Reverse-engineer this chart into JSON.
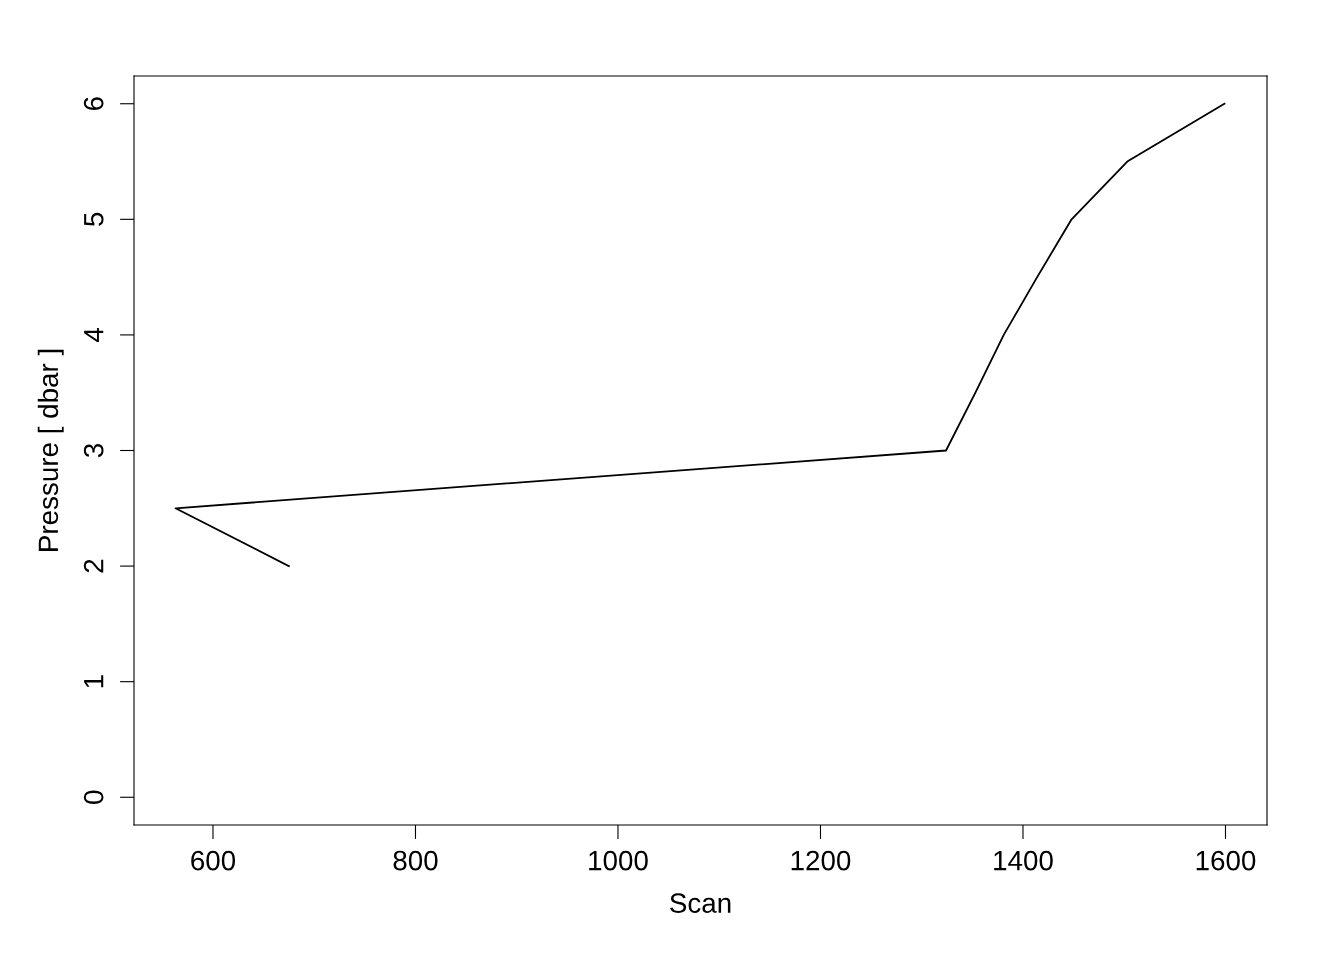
{
  "chart_data": {
    "type": "line",
    "xlabel": "Scan",
    "ylabel": "Pressure [ dbar ]",
    "x": [
      675,
      563,
      1324,
      1353,
      1381,
      1414,
      1448,
      1503,
      1599
    ],
    "series": [
      {
        "color": "#000000",
        "values": [
          2,
          2.5,
          3,
          3.5,
          4,
          4.5,
          5,
          5.5,
          6
        ]
      }
    ],
    "xlim": [
      522,
      1641
    ],
    "ylim": [
      -0.24,
      6.24
    ],
    "xticks": [
      600,
      800,
      1000,
      1200,
      1400,
      1600
    ],
    "yticks": [
      0,
      1,
      2,
      3,
      4,
      5,
      6
    ],
    "grid": false,
    "legend": false,
    "marker": "none",
    "line_style": "solid"
  }
}
